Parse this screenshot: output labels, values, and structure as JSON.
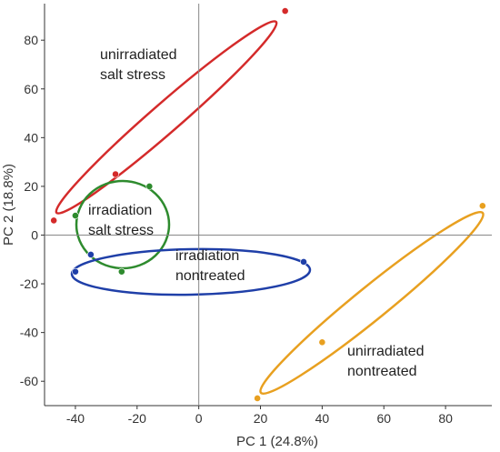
{
  "chart_data": {
    "type": "scatter",
    "xlabel": "PC 1 (24.8%)",
    "ylabel": "PC 2 (18.8%)",
    "xlim": [
      -50,
      95
    ],
    "ylim": [
      -70,
      95
    ],
    "xticks": [
      -40,
      -20,
      0,
      20,
      40,
      60,
      80
    ],
    "yticks": [
      -60,
      -40,
      -20,
      0,
      20,
      40,
      60,
      80
    ],
    "grid": false,
    "origin_lines": true,
    "series": [
      {
        "name": "unirradiated salt stress",
        "label_lines": [
          "unirradiated",
          "salt stress"
        ],
        "color": "#d42a2a",
        "points": [
          {
            "x": 28,
            "y": 92
          },
          {
            "x": -27,
            "y": 25
          },
          {
            "x": -47,
            "y": 6
          }
        ]
      },
      {
        "name": "irradiation salt stress",
        "label_lines": [
          "irradiation",
          "salt stress"
        ],
        "color": "#2e8b2e",
        "points": [
          {
            "x": -16,
            "y": 20
          },
          {
            "x": -40,
            "y": 8
          },
          {
            "x": -25,
            "y": -15
          }
        ]
      },
      {
        "name": "irradiation nontreated",
        "label_lines": [
          "irradiation",
          "nontreated"
        ],
        "color": "#1f3fa8",
        "points": [
          {
            "x": -40,
            "y": -15
          },
          {
            "x": -35,
            "y": -8
          },
          {
            "x": 34,
            "y": -11
          }
        ]
      },
      {
        "name": "unirradiated nontreated",
        "label_lines": [
          "unirradiated",
          "nontreated"
        ],
        "color": "#e8a020",
        "points": [
          {
            "x": 92,
            "y": 12
          },
          {
            "x": 40,
            "y": -44
          },
          {
            "x": 19,
            "y": -67
          }
        ]
      }
    ]
  }
}
